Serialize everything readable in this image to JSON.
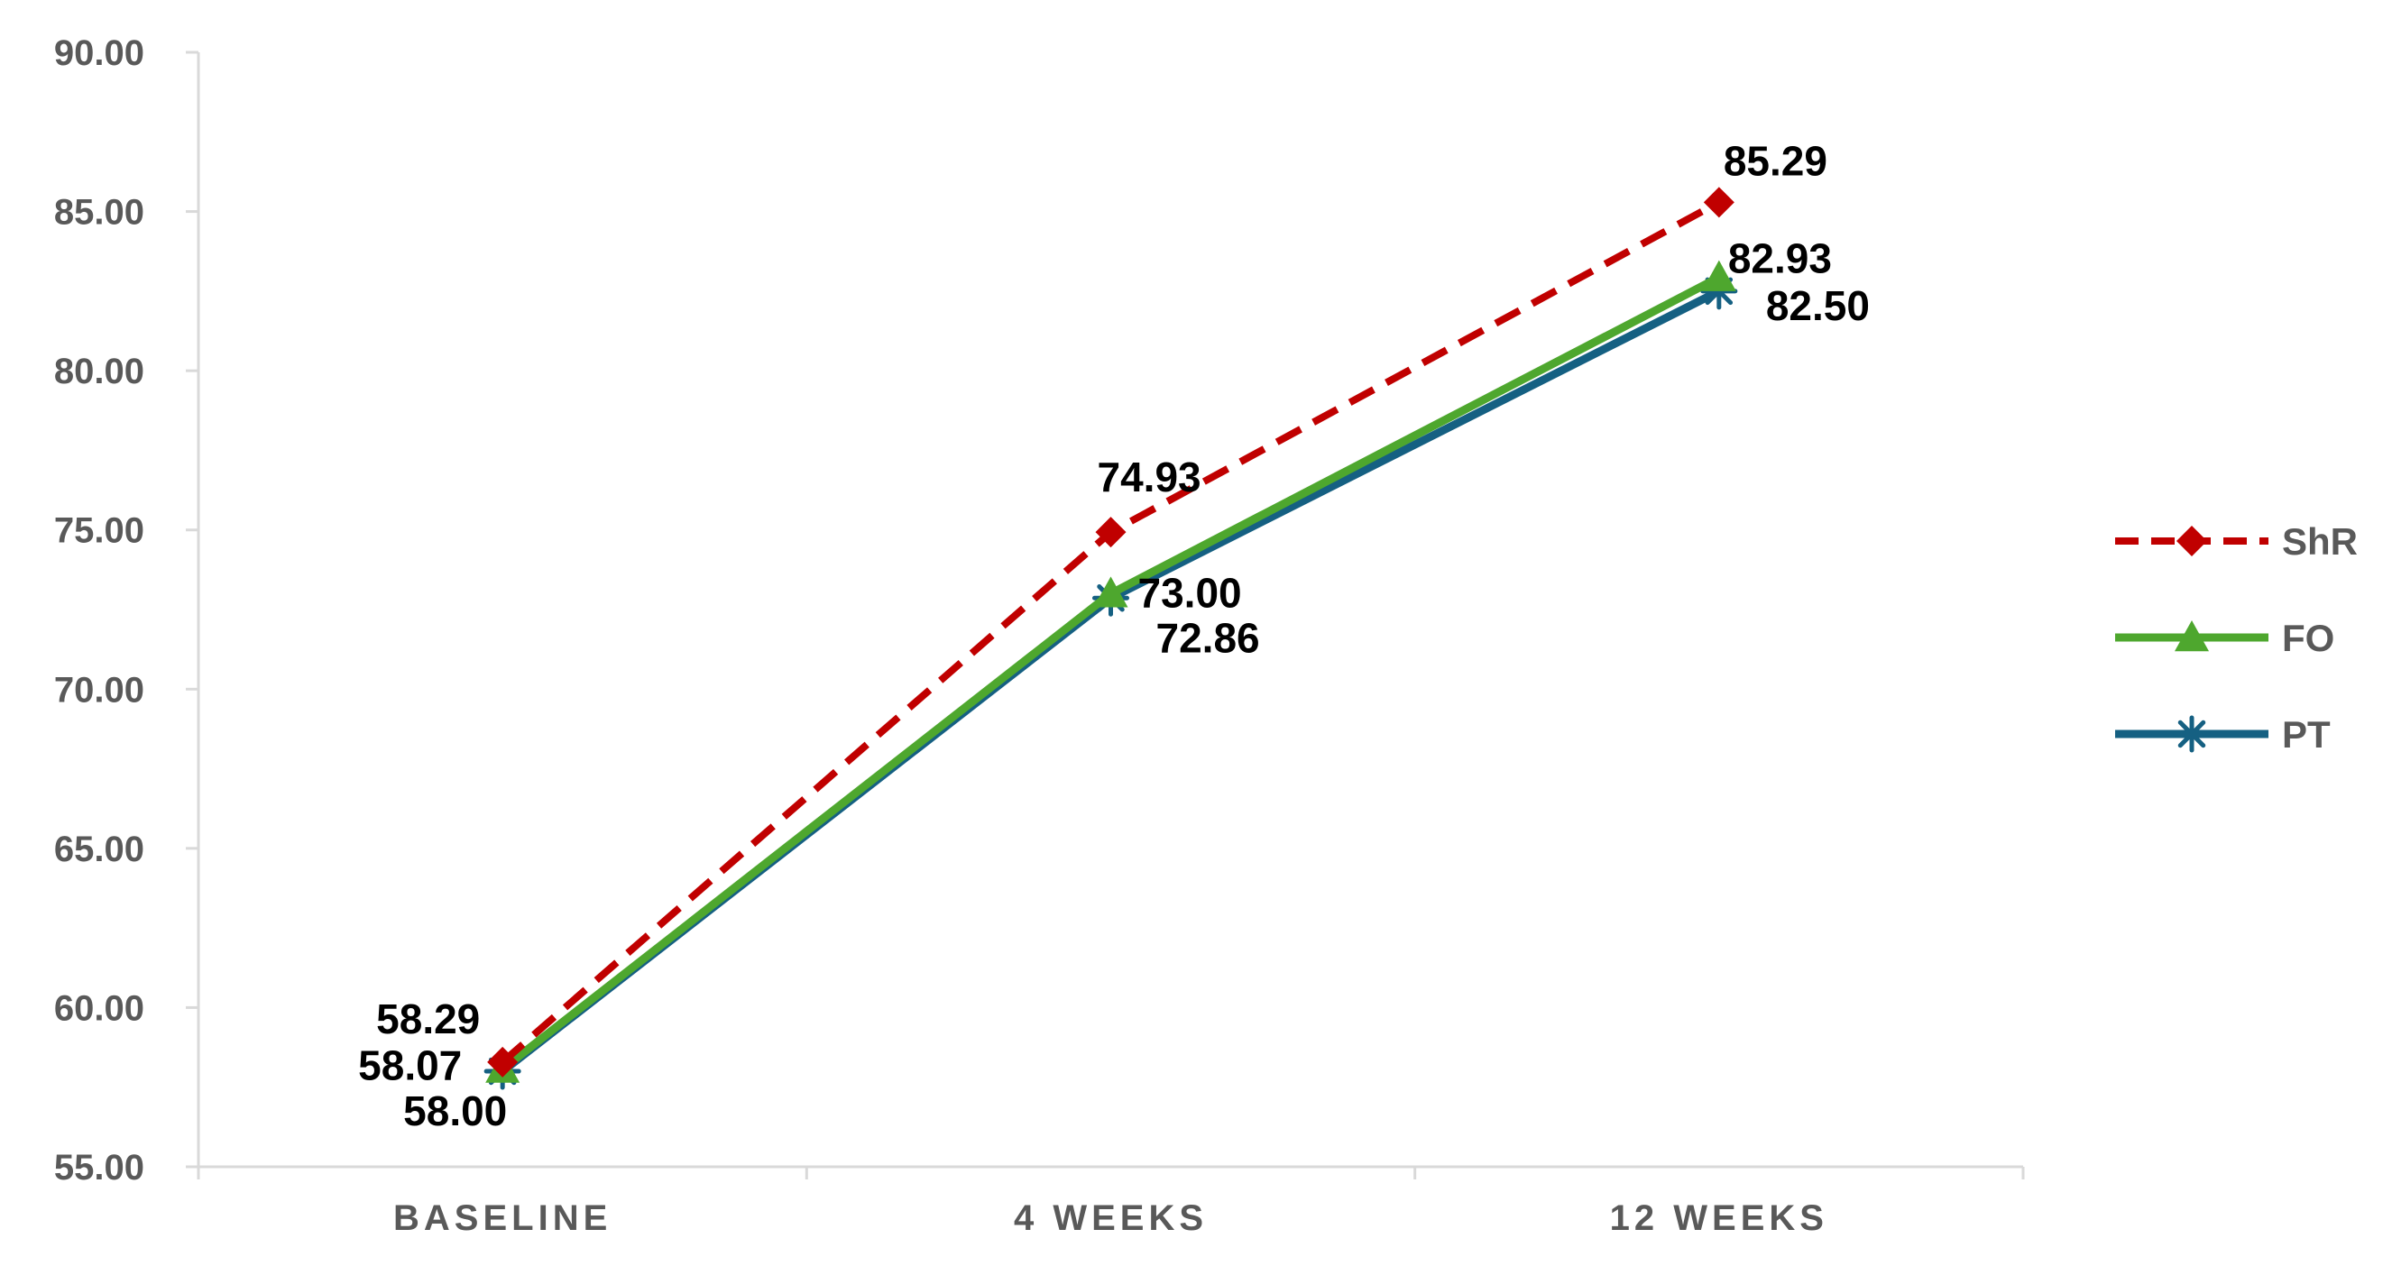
{
  "chart_data": {
    "type": "line",
    "categories": [
      "BASELINE",
      "4 WEEKS",
      "12 WEEKS"
    ],
    "ylim": [
      55,
      90
    ],
    "yticks": [
      "55.00",
      "60.00",
      "65.00",
      "70.00",
      "75.00",
      "80.00",
      "85.00",
      "90.00"
    ],
    "grid": false,
    "legend_position": "right",
    "series": [
      {
        "name": "ShR",
        "values": [
          58.29,
          74.93,
          85.29
        ],
        "labels": [
          "58.29",
          "74.93",
          "85.29"
        ],
        "color": "#C00000",
        "line_style": "dashed",
        "marker": "diamond"
      },
      {
        "name": "FO",
        "values": [
          58.07,
          73.0,
          82.93
        ],
        "labels": [
          "58.07",
          "73.00",
          "82.93"
        ],
        "color": "#4EA72E",
        "line_style": "solid",
        "marker": "triangle"
      },
      {
        "name": "PT",
        "values": [
          58.0,
          72.86,
          82.5
        ],
        "labels": [
          "58.00",
          "72.86",
          "82.50"
        ],
        "color": "#156082",
        "line_style": "solid",
        "marker": "asterisk"
      }
    ]
  }
}
